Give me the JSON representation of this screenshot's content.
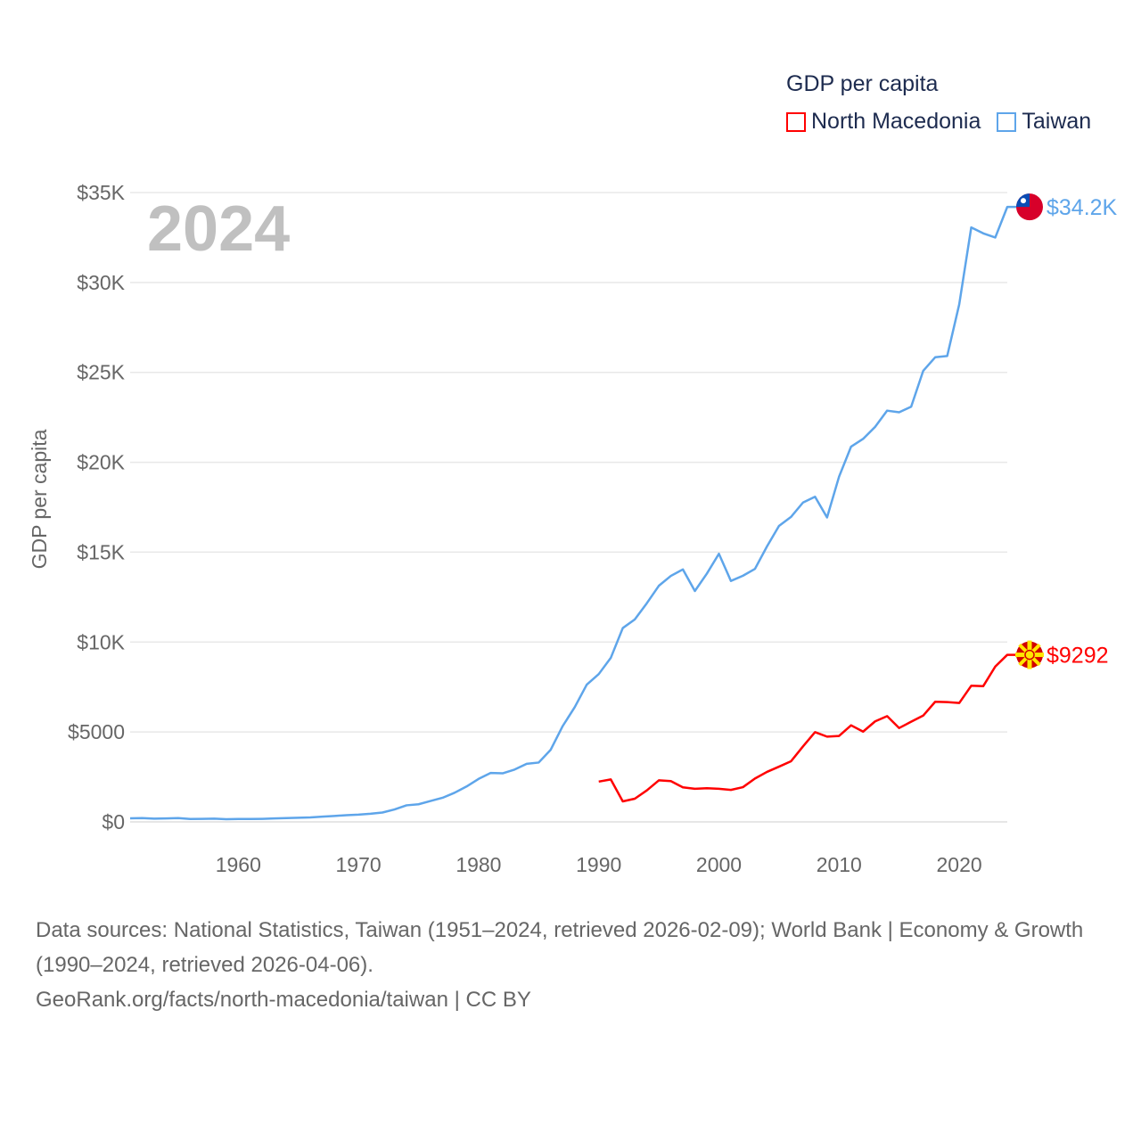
{
  "chart_data": {
    "type": "line",
    "title": "GDP per capita",
    "ylabel": "GDP per capita",
    "xlabel": "",
    "xlim": [
      1951,
      2024
    ],
    "ylim": [
      0,
      35000
    ],
    "grid": true,
    "legend_position": "top-right",
    "current_year_label": "2024",
    "x_ticks": [
      1960,
      1970,
      1980,
      1990,
      2000,
      2010,
      2020
    ],
    "x_tick_labels": [
      "1960",
      "1970",
      "1980",
      "1990",
      "2000",
      "2010",
      "2020"
    ],
    "y_ticks": [
      0,
      5000,
      10000,
      15000,
      20000,
      25000,
      30000,
      35000
    ],
    "y_tick_labels": [
      "$0",
      "$5000",
      "$10K",
      "$15K",
      "$20K",
      "$25K",
      "$30K",
      "$35K"
    ],
    "series": [
      {
        "name": "North Macedonia",
        "color": "#ff0000",
        "end_label": "$9292",
        "x_start": 1990,
        "values": [
          2240,
          2360,
          1140,
          1290,
          1750,
          2310,
          2270,
          1920,
          1840,
          1870,
          1840,
          1780,
          1930,
          2410,
          2780,
          3070,
          3370,
          4200,
          4990,
          4740,
          4780,
          5370,
          5020,
          5590,
          5880,
          5220,
          5570,
          5910,
          6680,
          6660,
          6610,
          7570,
          7550,
          8640,
          9292
        ]
      },
      {
        "name": "Taiwan",
        "color": "#5ea5ea",
        "end_label": "$34.2K",
        "x_start": 1951,
        "values": [
          200,
          210,
          180,
          190,
          210,
          160,
          170,
          180,
          150,
          160,
          160,
          170,
          190,
          210,
          230,
          250,
          290,
          330,
          370,
          400,
          450,
          520,
          690,
          920,
          980,
          1160,
          1340,
          1620,
          1970,
          2390,
          2720,
          2700,
          2910,
          3230,
          3300,
          4010,
          5330,
          6380,
          7630,
          8220,
          9120,
          10780,
          11260,
          12160,
          13130,
          13680,
          14040,
          12840,
          13810,
          14910,
          13400,
          13690,
          14070,
          15320,
          16460,
          16960,
          17760,
          18080,
          16930,
          19200,
          20870,
          21300,
          21970,
          22870,
          22780,
          23090,
          25080,
          25840,
          25910,
          28780,
          33060,
          32730,
          32500,
          34200
        ]
      }
    ]
  },
  "footer": {
    "sources": "Data sources: National Statistics, Taiwan (1951–2024, retrieved 2026-02-09); World Bank | Economy & Growth (1990–2024, retrieved 2026-04-06).",
    "credit": "GeoRank.org/facts/north-macedonia/taiwan | CC BY"
  }
}
